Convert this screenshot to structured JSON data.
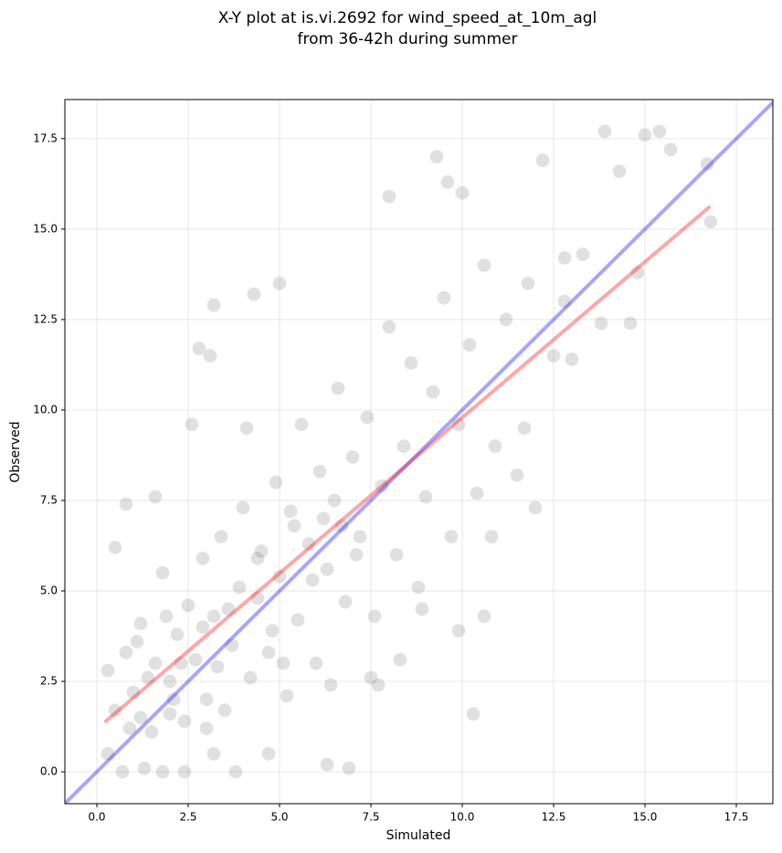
{
  "chart_data": {
    "type": "scatter",
    "title": [
      "X-Y plot at is.vi.2692 for wind_speed_at_10m_agl",
      "from 36-42h during summer"
    ],
    "x_label": "Simulated",
    "y_label": "Observed",
    "xlim": [
      -0.875,
      18.5
    ],
    "ylim": [
      -0.88,
      18.58
    ],
    "xticks": [
      {
        "value": 0,
        "label": "0.0"
      },
      2.5,
      {
        "value": 5,
        "label": "5.0"
      },
      7.5,
      {
        "value": 10,
        "label": "10.0"
      },
      12.5,
      {
        "value": 15,
        "label": "15.0"
      },
      17.5
    ],
    "yticks": [
      {
        "value": 0,
        "label": "0.0"
      },
      2.5,
      {
        "value": 5,
        "label": "5.0"
      },
      7.5,
      {
        "value": 10,
        "label": "10.0"
      },
      12.5,
      {
        "value": 15,
        "label": "15.0"
      },
      17.5
    ],
    "grid": true,
    "color": "#555555",
    "x": [
      0.3,
      0.5,
      0.8,
      1.0,
      1.2,
      1.5,
      1.6,
      1.8,
      2.0,
      2.2,
      2.4,
      2.5,
      2.7,
      2.9,
      3.0,
      3.2,
      3.4,
      3.5,
      3.7,
      3.9,
      4.0,
      4.2,
      4.4,
      4.5,
      4.7,
      4.9,
      5.0,
      5.2,
      5.3,
      5.5,
      5.6,
      5.8,
      6.0,
      6.1,
      6.3,
      6.5,
      6.6,
      6.8,
      7.0,
      7.2,
      7.4,
      7.6,
      7.8,
      8.0,
      8.2,
      8.4,
      8.6,
      8.8,
      9.0,
      9.2,
      9.5,
      9.7,
      9.9,
      10.0,
      10.2,
      10.4,
      10.6,
      10.9,
      11.2,
      11.5,
      11.8,
      12.2,
      12.5,
      12.8,
      13.0,
      13.8,
      13.9,
      14.3,
      14.6,
      15.0,
      15.4,
      15.7,
      16.7,
      16.8,
      0.3,
      0.7,
      1.3,
      1.8,
      2.4,
      3.2,
      3.8,
      4.7,
      6.3,
      6.9,
      10.3,
      0.5,
      0.8,
      1.6,
      3.2,
      4.3,
      5.0,
      8.0,
      9.3,
      9.6,
      2.8,
      3.1,
      11.7,
      12.0,
      10.8,
      9.9,
      10.6,
      8.3,
      7.5,
      4.1,
      2.6,
      1.2,
      2.1,
      3.3,
      4.8,
      5.9,
      6.7,
      0.9,
      1.4,
      2.3,
      2.9,
      3.6,
      4.4,
      5.4,
      6.2,
      7.1,
      3.0,
      2.0,
      1.1,
      1.9,
      5.1,
      6.4,
      7.7,
      8.9,
      13.3,
      14.8,
      12.8
    ],
    "y": [
      2.8,
      1.7,
      3.3,
      2.2,
      4.1,
      1.1,
      3.0,
      5.5,
      2.5,
      3.8,
      1.4,
      4.6,
      3.1,
      5.9,
      2.0,
      4.3,
      6.5,
      1.7,
      3.5,
      5.1,
      7.3,
      2.6,
      4.8,
      6.1,
      3.3,
      8.0,
      5.4,
      2.1,
      7.2,
      4.2,
      9.6,
      6.3,
      3.0,
      8.3,
      5.6,
      7.5,
      10.6,
      4.7,
      8.7,
      6.5,
      9.8,
      4.3,
      7.9,
      12.3,
      6.0,
      9.0,
      11.3,
      5.1,
      7.6,
      10.5,
      13.1,
      6.5,
      9.6,
      16.0,
      11.8,
      7.7,
      14.0,
      9.0,
      12.5,
      8.2,
      13.5,
      16.9,
      11.5,
      13.0,
      11.4,
      12.4,
      17.7,
      16.6,
      12.4,
      17.6,
      17.7,
      17.2,
      16.8,
      15.2,
      0.5,
      0.0,
      0.1,
      0.0,
      0.0,
      0.5,
      0.0,
      0.5,
      0.2,
      0.1,
      1.6,
      6.2,
      7.4,
      7.6,
      12.9,
      13.2,
      13.5,
      15.9,
      17.0,
      16.3,
      11.7,
      11.5,
      9.5,
      7.3,
      6.5,
      3.9,
      4.3,
      3.1,
      2.6,
      9.5,
      9.6,
      1.5,
      2.0,
      2.9,
      3.9,
      5.3,
      6.8,
      1.2,
      2.6,
      3.0,
      4.0,
      4.5,
      5.9,
      6.8,
      7.0,
      6.0,
      1.2,
      1.6,
      3.6,
      4.3,
      3.0,
      2.4,
      2.4,
      4.5,
      14.3,
      13.8,
      14.2
    ],
    "lines": [
      {
        "color": "#0000ff",
        "x": [
          -0.875,
          18.5
        ],
        "y": [
          -0.875,
          18.5
        ]
      },
      {
        "color": "#ff0000",
        "x": [
          0.25,
          16.75
        ],
        "y": [
          1.4,
          15.6
        ]
      }
    ]
  }
}
